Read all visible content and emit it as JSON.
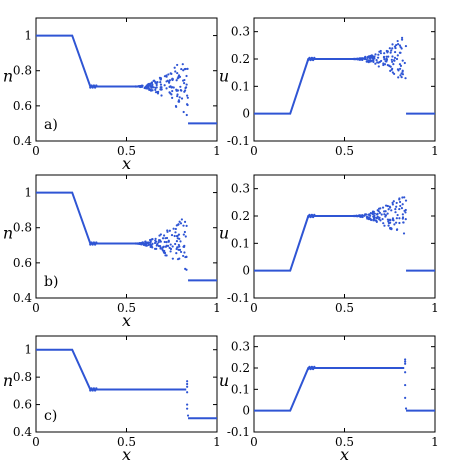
{
  "chart_data": [
    {
      "type": "scatter",
      "row": 0,
      "col": 0,
      "panel_label": "a)",
      "xlabel": "x",
      "ylabel": "n",
      "xlim": [
        0,
        1
      ],
      "ylim": [
        0.4,
        1.1
      ],
      "xticks": [
        0,
        0.5,
        1
      ],
      "xtick_labels": [
        "0",
        "0.5",
        "1"
      ],
      "yticks": [
        0.4,
        0.6,
        0.8,
        1.0
      ],
      "ytick_labels": [
        "0.4",
        "0.6",
        "0.8",
        "1"
      ],
      "line": [
        [
          0,
          1.0
        ],
        [
          0.2,
          1.0
        ],
        [
          0.3,
          0.71
        ],
        [
          0.55,
          0.71
        ]
      ],
      "tail_line": [
        [
          0.84,
          0.5
        ],
        [
          1.0,
          0.5
        ]
      ],
      "scatter_mode": "spread",
      "scatter_x": [
        0.55,
        0.84
      ],
      "scatter_center": 0.71,
      "scatter_amp": 0.18,
      "color": "#2f55d4"
    },
    {
      "type": "scatter",
      "row": 0,
      "col": 1,
      "panel_label": "",
      "xlabel": "",
      "ylabel": "u",
      "xlim": [
        0,
        1
      ],
      "ylim": [
        -0.1,
        0.35
      ],
      "xticks": [
        0,
        0.5,
        1
      ],
      "xtick_labels": [
        "0",
        "0.5",
        "1"
      ],
      "yticks": [
        -0.1,
        0,
        0.1,
        0.2,
        0.3
      ],
      "ytick_labels": [
        "-0.1",
        "0",
        "0.1",
        "0.2",
        "0.3"
      ],
      "line": [
        [
          0,
          0
        ],
        [
          0.2,
          0
        ],
        [
          0.3,
          0.2
        ],
        [
          0.55,
          0.2
        ]
      ],
      "tail_line": [
        [
          0.84,
          0
        ],
        [
          1.0,
          0
        ]
      ],
      "scatter_mode": "spread",
      "scatter_x": [
        0.55,
        0.84
      ],
      "scatter_center": 0.2,
      "scatter_amp": 0.09,
      "color": "#2f55d4"
    },
    {
      "type": "scatter",
      "row": 1,
      "col": 0,
      "panel_label": "b)",
      "xlabel": "x",
      "ylabel": "n",
      "xlim": [
        0,
        1
      ],
      "ylim": [
        0.4,
        1.1
      ],
      "xticks": [
        0,
        0.5,
        1
      ],
      "xtick_labels": [
        "0",
        "0.5",
        "1"
      ],
      "yticks": [
        0.4,
        0.6,
        0.8,
        1.0
      ],
      "ytick_labels": [
        "0.4",
        "0.6",
        "0.8",
        "1"
      ],
      "line": [
        [
          0,
          1.0
        ],
        [
          0.2,
          1.0
        ],
        [
          0.3,
          0.71
        ],
        [
          0.55,
          0.71
        ]
      ],
      "tail_line": [
        [
          0.84,
          0.5
        ],
        [
          1.0,
          0.5
        ]
      ],
      "scatter_mode": "spread",
      "scatter_x": [
        0.55,
        0.84
      ],
      "scatter_center": 0.71,
      "scatter_amp": 0.17,
      "color": "#2f55d4"
    },
    {
      "type": "scatter",
      "row": 1,
      "col": 1,
      "panel_label": "",
      "xlabel": "",
      "ylabel": "u",
      "xlim": [
        0,
        1
      ],
      "ylim": [
        -0.1,
        0.35
      ],
      "xticks": [
        0,
        0.5,
        1
      ],
      "xtick_labels": [
        "0",
        "0.5",
        "1"
      ],
      "yticks": [
        -0.1,
        0,
        0.1,
        0.2,
        0.3
      ],
      "ytick_labels": [
        "-0.1",
        "0",
        "0.1",
        "0.2",
        "0.3"
      ],
      "line": [
        [
          0,
          0
        ],
        [
          0.2,
          0
        ],
        [
          0.3,
          0.2
        ],
        [
          0.55,
          0.2
        ]
      ],
      "tail_line": [
        [
          0.84,
          0
        ],
        [
          1.0,
          0
        ]
      ],
      "scatter_mode": "spread",
      "scatter_x": [
        0.55,
        0.84
      ],
      "scatter_center": 0.2,
      "scatter_amp": 0.085,
      "color": "#2f55d4"
    },
    {
      "type": "scatter",
      "row": 2,
      "col": 0,
      "panel_label": "c)",
      "xlabel": "x",
      "ylabel": "n",
      "xlim": [
        0,
        1
      ],
      "ylim": [
        0.4,
        1.1
      ],
      "xticks": [
        0,
        0.5,
        1
      ],
      "xtick_labels": [
        "0",
        "0.5",
        "1"
      ],
      "yticks": [
        0.4,
        0.6,
        0.8,
        1.0
      ],
      "ytick_labels": [
        "0.4",
        "0.6",
        "0.8",
        "1"
      ],
      "line": [
        [
          0,
          1.0
        ],
        [
          0.2,
          1.0
        ],
        [
          0.3,
          0.71
        ],
        [
          0.83,
          0.71
        ]
      ],
      "tail_line": [
        [
          0.84,
          0.5
        ],
        [
          1.0,
          0.5
        ]
      ],
      "scatter_mode": "spike",
      "scatter_points": [
        [
          0.835,
          0.77
        ],
        [
          0.835,
          0.75
        ],
        [
          0.835,
          0.73
        ],
        [
          0.835,
          0.69
        ],
        [
          0.835,
          0.6
        ],
        [
          0.835,
          0.57
        ],
        [
          0.84,
          0.52
        ]
      ],
      "color": "#2f55d4"
    },
    {
      "type": "scatter",
      "row": 2,
      "col": 1,
      "panel_label": "",
      "xlabel": "x",
      "ylabel": "u",
      "xlim": [
        0,
        1
      ],
      "ylim": [
        -0.1,
        0.35
      ],
      "xticks": [
        0,
        0.5,
        1
      ],
      "xtick_labels": [
        "0",
        "0.5",
        "1"
      ],
      "yticks": [
        -0.1,
        0,
        0.1,
        0.2,
        0.3
      ],
      "ytick_labels": [
        "-0.1",
        "0",
        "0.1",
        "0.2",
        "0.3"
      ],
      "line": [
        [
          0,
          0
        ],
        [
          0.2,
          0
        ],
        [
          0.3,
          0.2
        ],
        [
          0.83,
          0.2
        ]
      ],
      "tail_line": [
        [
          0.84,
          0
        ],
        [
          1.0,
          0
        ]
      ],
      "scatter_mode": "spike",
      "scatter_points": [
        [
          0.835,
          0.24
        ],
        [
          0.835,
          0.23
        ],
        [
          0.835,
          0.22
        ],
        [
          0.835,
          0.18
        ],
        [
          0.835,
          0.12
        ],
        [
          0.835,
          0.06
        ],
        [
          0.84,
          0.01
        ]
      ],
      "color": "#2f55d4"
    }
  ]
}
